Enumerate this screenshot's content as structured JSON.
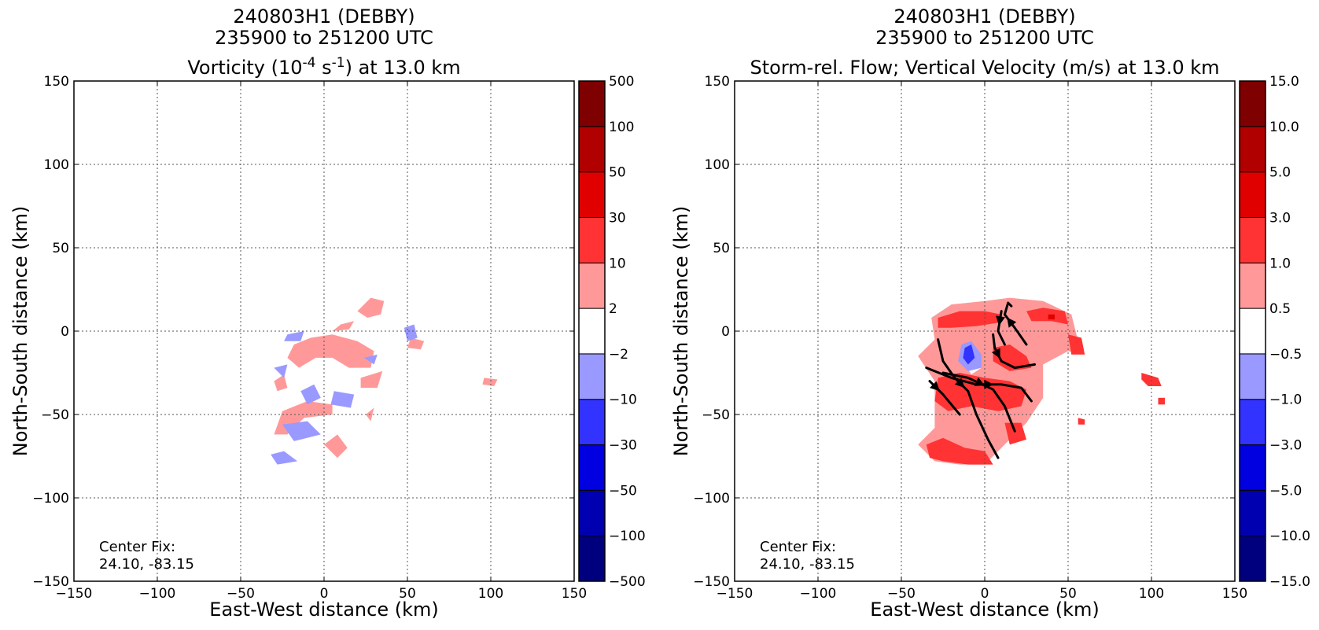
{
  "chart_data": [
    {
      "type": "heatmap",
      "title_line1": "240803H1 (DEBBY)",
      "title_line2": "235900 to 251200 UTC",
      "title_line3": {
        "prefix": "Vorticity (10",
        "exp1": "-4",
        "mid": " s",
        "exp2": "-1",
        "suffix": ") at 13.0 km"
      },
      "xlabel": "East-West distance (km)",
      "ylabel": "North-South distance (km)",
      "xlim": [
        -150,
        150
      ],
      "ylim": [
        -150,
        150
      ],
      "xticks": [
        "−150",
        "−100",
        "−50",
        "0",
        "50",
        "100",
        "150"
      ],
      "yticks": [
        "−150",
        "−100",
        "−50",
        "0",
        "50",
        "100",
        "150"
      ],
      "grid": true,
      "annotation_line1": "Center Fix:",
      "annotation_line2": "24.10, -83.15",
      "colorbar_labels": [
        "−500",
        "−100",
        "−50",
        "−30",
        "−10",
        "−2",
        "2",
        "10",
        "30",
        "50",
        "100",
        "500"
      ],
      "colorbar_colors": [
        "#00007f",
        "#0000b0",
        "#0000e0",
        "#3333ff",
        "#9999ff",
        "#ffffff",
        "#ff9999",
        "#ff3333",
        "#e00000",
        "#b00000",
        "#7f0000"
      ],
      "regions": [
        {
          "color": "#ff9999",
          "points": [
            [
              -18,
              -8
            ],
            [
              -8,
              -4
            ],
            [
              5,
              -2
            ],
            [
              20,
              -6
            ],
            [
              30,
              -12
            ],
            [
              28,
              -22
            ],
            [
              15,
              -22
            ],
            [
              5,
              -16
            ],
            [
              -5,
              -16
            ],
            [
              -15,
              -22
            ],
            [
              -22,
              -16
            ]
          ]
        },
        {
          "color": "#ff9999",
          "points": [
            [
              5,
              0
            ],
            [
              10,
              4
            ],
            [
              18,
              6
            ],
            [
              15,
              1
            ]
          ]
        },
        {
          "color": "#ff9999",
          "points": [
            [
              20,
              12
            ],
            [
              28,
              20
            ],
            [
              36,
              18
            ],
            [
              34,
              10
            ],
            [
              26,
              8
            ]
          ]
        },
        {
          "color": "#ff9999",
          "points": [
            [
              22,
              -28
            ],
            [
              35,
              -24
            ],
            [
              32,
              -34
            ],
            [
              22,
              -34
            ]
          ]
        },
        {
          "color": "#ff9999",
          "points": [
            [
              -30,
              -62
            ],
            [
              -25,
              -48
            ],
            [
              -10,
              -42
            ],
            [
              5,
              -44
            ],
            [
              5,
              -50
            ],
            [
              -12,
              -52
            ],
            [
              -22,
              -62
            ]
          ]
        },
        {
          "color": "#ff9999",
          "points": [
            [
              0,
              -68
            ],
            [
              8,
              -62
            ],
            [
              14,
              -70
            ],
            [
              8,
              -76
            ]
          ]
        },
        {
          "color": "#ff9999",
          "points": [
            [
              25,
              -50
            ],
            [
              30,
              -46
            ],
            [
              28,
              -54
            ]
          ]
        },
        {
          "color": "#ff9999",
          "points": [
            [
              -30,
              -30
            ],
            [
              -24,
              -26
            ],
            [
              -22,
              -34
            ],
            [
              -28,
              -36
            ]
          ]
        },
        {
          "color": "#ff9999",
          "points": [
            [
              52,
              -4
            ],
            [
              60,
              -6
            ],
            [
              58,
              -11
            ],
            [
              50,
              -10
            ]
          ]
        },
        {
          "color": "#ff9999",
          "points": [
            [
              96,
              -28
            ],
            [
              104,
              -29
            ],
            [
              102,
              -33
            ],
            [
              95,
              -32
            ]
          ]
        },
        {
          "color": "#9999ff",
          "points": [
            [
              -14,
              -36
            ],
            [
              -6,
              -32
            ],
            [
              -2,
              -40
            ],
            [
              -10,
              -44
            ]
          ]
        },
        {
          "color": "#9999ff",
          "points": [
            [
              6,
              -36
            ],
            [
              18,
              -38
            ],
            [
              16,
              -46
            ],
            [
              4,
              -44
            ]
          ]
        },
        {
          "color": "#9999ff",
          "points": [
            [
              -25,
              -56
            ],
            [
              -10,
              -54
            ],
            [
              -2,
              -62
            ],
            [
              -18,
              -66
            ]
          ]
        },
        {
          "color": "#9999ff",
          "points": [
            [
              -32,
              -74
            ],
            [
              -24,
              -72
            ],
            [
              -16,
              -78
            ],
            [
              -28,
              -80
            ]
          ]
        },
        {
          "color": "#9999ff",
          "points": [
            [
              -22,
              -2
            ],
            [
              -12,
              0
            ],
            [
              -14,
              -6
            ],
            [
              -24,
              -6
            ]
          ]
        },
        {
          "color": "#9999ff",
          "points": [
            [
              48,
              2
            ],
            [
              54,
              4
            ],
            [
              56,
              -4
            ],
            [
              50,
              -6
            ]
          ]
        },
        {
          "color": "#9999ff",
          "points": [
            [
              -30,
              -22
            ],
            [
              -22,
              -20
            ],
            [
              -24,
              -28
            ]
          ]
        },
        {
          "color": "#9999ff",
          "points": [
            [
              24,
              -16
            ],
            [
              32,
              -14
            ],
            [
              30,
              -20
            ]
          ]
        }
      ],
      "streamlines": []
    },
    {
      "type": "heatmap",
      "title_line1": "240803H1 (DEBBY)",
      "title_line2": "235900 to 251200 UTC",
      "title_line3": {
        "prefix": "Storm-rel. Flow; Vertical Velocity (m/s) at 13.0 km",
        "exp1": "",
        "mid": "",
        "exp2": "",
        "suffix": ""
      },
      "xlabel": "East-West distance (km)",
      "ylabel": "North-South distance (km)",
      "xlim": [
        -150,
        150
      ],
      "ylim": [
        -150,
        150
      ],
      "xticks": [
        "−150",
        "−100",
        "−50",
        "0",
        "50",
        "100",
        "150"
      ],
      "yticks": [
        "−150",
        "−100",
        "−50",
        "0",
        "50",
        "100",
        "150"
      ],
      "grid": true,
      "annotation_line1": "Center Fix:",
      "annotation_line2": "24.10, -83.15",
      "colorbar_labels": [
        "−15.0",
        "−10.0",
        "−5.0",
        "−3.0",
        "−1.0",
        "−0.5",
        "0.5",
        "1.0",
        "3.0",
        "5.0",
        "10.0",
        "15.0"
      ],
      "colorbar_colors": [
        "#00007f",
        "#0000b0",
        "#0000e0",
        "#3333ff",
        "#9999ff",
        "#ffffff",
        "#ff9999",
        "#ff3333",
        "#e00000",
        "#b00000",
        "#7f0000"
      ],
      "regions": [
        {
          "color": "#ff9999",
          "points": [
            [
              -32,
              8
            ],
            [
              -20,
              16
            ],
            [
              0,
              18
            ],
            [
              15,
              20
            ],
            [
              35,
              18
            ],
            [
              52,
              10
            ],
            [
              55,
              -2
            ],
            [
              60,
              -14
            ],
            [
              50,
              -12
            ],
            [
              35,
              -20
            ],
            [
              35,
              -40
            ],
            [
              25,
              -55
            ],
            [
              15,
              -65
            ],
            [
              0,
              -80
            ],
            [
              -15,
              -80
            ],
            [
              -30,
              -78
            ],
            [
              -40,
              -68
            ],
            [
              -30,
              -58
            ],
            [
              -30,
              -30
            ],
            [
              -40,
              -15
            ],
            [
              -30,
              -5
            ]
          ]
        },
        {
          "color": "#ff3333",
          "points": [
            [
              -28,
              8
            ],
            [
              -15,
              12
            ],
            [
              0,
              12
            ],
            [
              10,
              10
            ],
            [
              8,
              5
            ],
            [
              -5,
              3
            ],
            [
              -20,
              2
            ],
            [
              -28,
              2
            ]
          ]
        },
        {
          "color": "#ff3333",
          "points": [
            [
              25,
              12
            ],
            [
              35,
              14
            ],
            [
              48,
              12
            ],
            [
              50,
              4
            ],
            [
              40,
              6
            ],
            [
              28,
              6
            ]
          ]
        },
        {
          "color": "#ff3333",
          "points": [
            [
              50,
              -2
            ],
            [
              58,
              -4
            ],
            [
              60,
              -14
            ],
            [
              52,
              -14
            ]
          ]
        },
        {
          "color": "#ff3333",
          "points": [
            [
              -28,
              -28
            ],
            [
              -15,
              -25
            ],
            [
              0,
              -28
            ],
            [
              15,
              -30
            ],
            [
              25,
              -35
            ],
            [
              22,
              -45
            ],
            [
              8,
              -48
            ],
            [
              -8,
              -45
            ],
            [
              -22,
              -48
            ],
            [
              -30,
              -42
            ]
          ]
        },
        {
          "color": "#ff3333",
          "points": [
            [
              -35,
              -68
            ],
            [
              -25,
              -64
            ],
            [
              -12,
              -70
            ],
            [
              0,
              -72
            ],
            [
              5,
              -80
            ],
            [
              -10,
              -80
            ],
            [
              -25,
              -78
            ],
            [
              -33,
              -76
            ]
          ]
        },
        {
          "color": "#ff3333",
          "points": [
            [
              12,
              -55
            ],
            [
              22,
              -55
            ],
            [
              25,
              -65
            ],
            [
              15,
              -68
            ]
          ]
        },
        {
          "color": "#ff3333",
          "points": [
            [
              5,
              -10
            ],
            [
              15,
              -8
            ],
            [
              25,
              -15
            ],
            [
              28,
              -22
            ],
            [
              15,
              -24
            ],
            [
              5,
              -18
            ]
          ]
        },
        {
          "color": "#e00000",
          "points": [
            [
              38,
              10
            ],
            [
              42,
              10
            ],
            [
              42,
              7
            ],
            [
              38,
              7
            ]
          ]
        },
        {
          "color": "#ff3333",
          "points": [
            [
              94,
              -25
            ],
            [
              104,
              -28
            ],
            [
              106,
              -33
            ],
            [
              98,
              -33
            ],
            [
              94,
              -29
            ]
          ]
        },
        {
          "color": "#ff3333",
          "points": [
            [
              56,
              -52
            ],
            [
              60,
              -53
            ],
            [
              60,
              -56
            ],
            [
              56,
              -56
            ]
          ]
        },
        {
          "color": "#ff3333",
          "points": [
            [
              104,
              -40
            ],
            [
              108,
              -40
            ],
            [
              108,
              -44
            ],
            [
              104,
              -44
            ]
          ]
        },
        {
          "color": "#ffffff",
          "points": [
            [
              -12,
              -20
            ],
            [
              -6,
              -16
            ],
            [
              -2,
              -22
            ],
            [
              -8,
              -26
            ]
          ]
        },
        {
          "color": "#9999ff",
          "points": [
            [
              -14,
              -8
            ],
            [
              -8,
              -6
            ],
            [
              -2,
              -14
            ],
            [
              -2,
              -22
            ],
            [
              -10,
              -24
            ],
            [
              -16,
              -18
            ]
          ]
        },
        {
          "color": "#3333ff",
          "points": [
            [
              -12,
              -10
            ],
            [
              -8,
              -8
            ],
            [
              -6,
              -16
            ],
            [
              -10,
              -20
            ],
            [
              -13,
              -16
            ]
          ]
        }
      ],
      "streamlines": [
        [
          [
            -28,
            -5
          ],
          [
            -25,
            -18
          ],
          [
            -18,
            -28
          ],
          [
            -10,
            -36
          ],
          [
            -5,
            -50
          ],
          [
            2,
            -65
          ],
          [
            8,
            -76
          ]
        ],
        [
          [
            -33,
            -30
          ],
          [
            -25,
            -38
          ],
          [
            -15,
            -50
          ]
        ],
        [
          [
            -35,
            -22
          ],
          [
            -20,
            -28
          ],
          [
            -5,
            -32
          ],
          [
            10,
            -32
          ],
          [
            22,
            -34
          ],
          [
            28,
            -42
          ]
        ],
        [
          [
            -25,
            -25
          ],
          [
            -10,
            -28
          ],
          [
            5,
            -35
          ],
          [
            12,
            -45
          ],
          [
            18,
            -60
          ]
        ],
        [
          [
            5,
            -2
          ],
          [
            6,
            -10
          ],
          [
            10,
            -18
          ],
          [
            18,
            -22
          ],
          [
            30,
            -20
          ]
        ],
        [
          [
            10,
            12
          ],
          [
            8,
            0
          ],
          [
            12,
            -8
          ]
        ],
        [
          [
            25,
            -8
          ],
          [
            18,
            2
          ],
          [
            12,
            10
          ],
          [
            14,
            17
          ],
          [
            16,
            15
          ]
        ]
      ]
    }
  ]
}
